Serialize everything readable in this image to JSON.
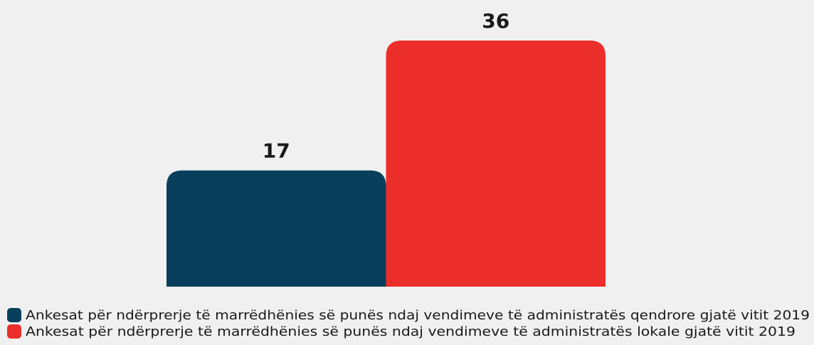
{
  "chart_data": {
    "type": "bar",
    "categories": [
      null
    ],
    "series": [
      {
        "name": "Ankesat për ndërprerje të marrëdhënies së punës ndaj vendimeve të administratës qendrore gjatë vitit 2019",
        "color": "#073f5c",
        "values": [
          17
        ]
      },
      {
        "name": "Ankesat për ndërprerje të marrëdhënies së punës ndaj vendimeve të administratës lokale gjatë vitit 2019",
        "color": "#ec2e2a",
        "values": [
          36
        ]
      }
    ]
  }
}
